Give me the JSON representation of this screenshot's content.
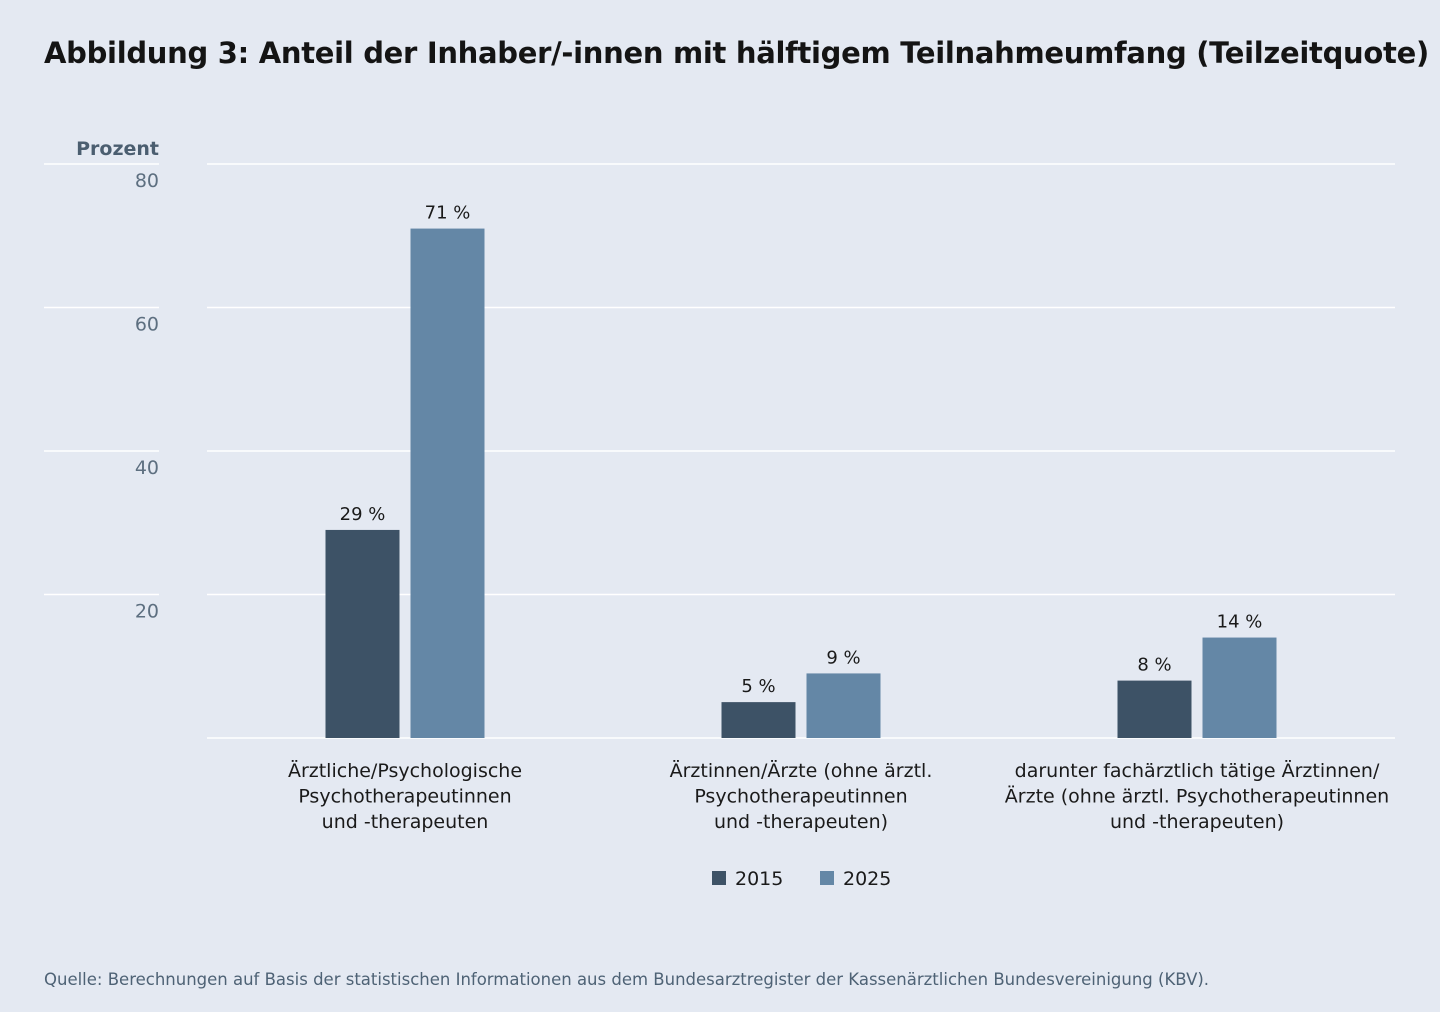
{
  "title": "Abbildung 3: Anteil der Inhaber/-innen mit hälftigem Teilnahmeumfang (Teilzeitquote)",
  "source": "Quelle: Berechnungen auf Basis der statistischen Informationen aus dem Bundesarztregister der Kassenärztlichen Bundesvereinigung (KBV).",
  "colors": {
    "s2015": "#3d5266",
    "s2025": "#6487a6",
    "grid": "#ffffff",
    "background": "#e4e9f2"
  },
  "chart_data": {
    "type": "bar",
    "ylabel": "Prozent",
    "ylim": [
      0,
      80
    ],
    "yticks": [
      20,
      40,
      60,
      80
    ],
    "grid": true,
    "legend_position": "bottom-center",
    "categories": [
      [
        "Ärztliche/Psychologische",
        "Psychotherapeutinnen",
        "und -therapeuten"
      ],
      [
        "Ärztinnen/Ärzte (ohne ärztl.",
        "Psychotherapeutinnen",
        "und -therapeuten)"
      ],
      [
        "darunter fachärztlich tätige Ärztinnen/",
        "Ärzte (ohne ärztl. Psychotherapeutinnen",
        "und -therapeuten)"
      ]
    ],
    "series": [
      {
        "name": "2015",
        "values": [
          29,
          5,
          8
        ],
        "labels": [
          "29 %",
          "5 %",
          "8 %"
        ]
      },
      {
        "name": "2025",
        "values": [
          71,
          9,
          14
        ],
        "labels": [
          "71 %",
          "9 %",
          "14 %"
        ]
      }
    ]
  }
}
